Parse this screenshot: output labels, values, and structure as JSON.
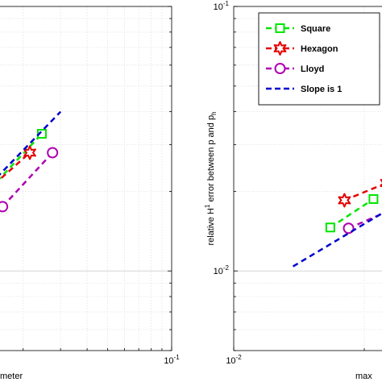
{
  "chart_data": [
    {
      "type": "line",
      "panel": "left",
      "xscale": "log",
      "yscale": "log",
      "xlabel_partial": "meter",
      "xlim": [
        0.005,
        0.1
      ],
      "ylim": [
        0.005,
        0.1
      ],
      "xtick_labels": [
        {
          "base": "10",
          "exp": "-1",
          "value": 0.1
        }
      ],
      "grid": true,
      "series": [
        {
          "color": "#00e600",
          "marker": "square",
          "dashed": true,
          "x": [
            0.014,
            0.0245
          ],
          "y": [
            0.0205,
            0.033
          ]
        },
        {
          "color": "#e60000",
          "marker": "hexagram",
          "dashed": true,
          "x": [
            0.0125,
            0.0215
          ],
          "y": [
            0.019,
            0.028
          ]
        },
        {
          "color": "#b000b0",
          "marker": "circle",
          "dashed": true,
          "x": [
            0.016,
            0.0275
          ],
          "y": [
            0.0175,
            0.028
          ]
        },
        {
          "color": "#0000cc",
          "marker": "none",
          "dashed": true,
          "x": [
            0.013,
            0.03
          ],
          "y": [
            0.02,
            0.04
          ]
        }
      ]
    },
    {
      "type": "line",
      "panel": "right",
      "xscale": "log",
      "yscale": "log",
      "ylabel": "relative H¹ error between p and pₕ",
      "ylabel_parts": {
        "a": "relative H",
        "a_sup": "1",
        "b": " error between p and p",
        "b_sub": "h"
      },
      "xlabel_partial": "max",
      "xlim": [
        0.01,
        0.04
      ],
      "ylim": [
        0.005,
        0.1
      ],
      "ytick_labels": [
        {
          "base": "10",
          "exp": "-1",
          "value": 0.1
        },
        {
          "base": "10",
          "exp": "-2",
          "value": 0.01
        }
      ],
      "xtick_labels": [
        {
          "base": "10",
          "exp": "-2",
          "value": 0.01
        }
      ],
      "grid": true,
      "legend": {
        "position": "top-right",
        "entries": [
          {
            "label": "Square",
            "color": "#00e600",
            "marker": "square"
          },
          {
            "label": "Hexagon",
            "color": "#e60000",
            "marker": "hexagram"
          },
          {
            "label": "Lloyd",
            "color": "#b000b0",
            "marker": "circle"
          },
          {
            "label": "Slope is 1",
            "color": "#0000cc",
            "marker": "none"
          }
        ]
      },
      "series": [
        {
          "name": "Square",
          "color": "#00e600",
          "marker": "square",
          "dashed": true,
          "x": [
            0.0167,
            0.021
          ],
          "y": [
            0.0146,
            0.0187
          ]
        },
        {
          "name": "Hexagon",
          "color": "#e60000",
          "marker": "hexagram",
          "dashed": true,
          "x": [
            0.018,
            0.0225
          ],
          "y": [
            0.0185,
            0.0215
          ]
        },
        {
          "name": "Lloyd",
          "color": "#b000b0",
          "marker": "circle",
          "dashed": true,
          "x": [
            0.0184,
            0.024
          ],
          "y": [
            0.0145,
            0.0175
          ]
        },
        {
          "name": "Slope is 1",
          "color": "#0000cc",
          "marker": "none",
          "dashed": true,
          "x": [
            0.0137,
            0.024
          ],
          "y": [
            0.0104,
            0.018
          ]
        }
      ]
    }
  ]
}
